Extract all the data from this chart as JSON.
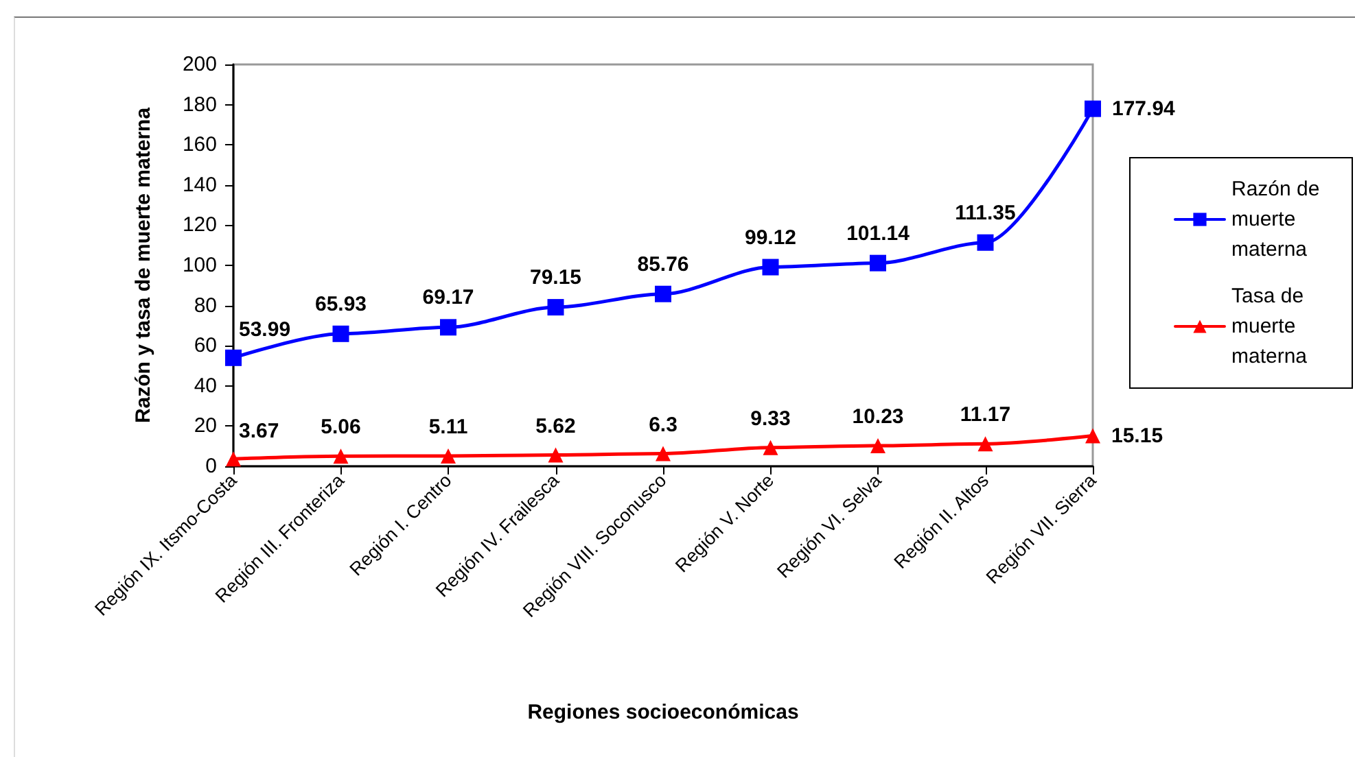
{
  "chart_data": {
    "type": "line",
    "xlabel": "Regiones socioeconómicas",
    "ylabel": "Razón y tasa de muerte materna",
    "categories": [
      "Región IX. Itsmo-Costa",
      "Región III. Fronteriza",
      "Región I. Centro",
      "Región IV. Frailesca",
      "Región VIII. Soconusco",
      "Región V. Norte",
      "Región VI. Selva",
      "Región II. Altos",
      "Región VII. Sierra"
    ],
    "series": [
      {
        "name": "Razón de muerte materna",
        "color": "#0000ff",
        "marker": "square",
        "values": [
          53.99,
          65.93,
          69.17,
          79.15,
          85.76,
          99.12,
          101.14,
          111.35,
          177.94
        ]
      },
      {
        "name": "Tasa de muerte materna",
        "color": "#ff0000",
        "marker": "triangle",
        "values": [
          3.67,
          5.06,
          5.11,
          5.62,
          6.3,
          9.33,
          10.23,
          11.17,
          15.15
        ]
      }
    ],
    "ylim": [
      0,
      200
    ],
    "yticks": [
      0,
      20,
      40,
      60,
      80,
      100,
      120,
      140,
      160,
      180,
      200
    ],
    "data_labels": true,
    "legend": "right"
  }
}
